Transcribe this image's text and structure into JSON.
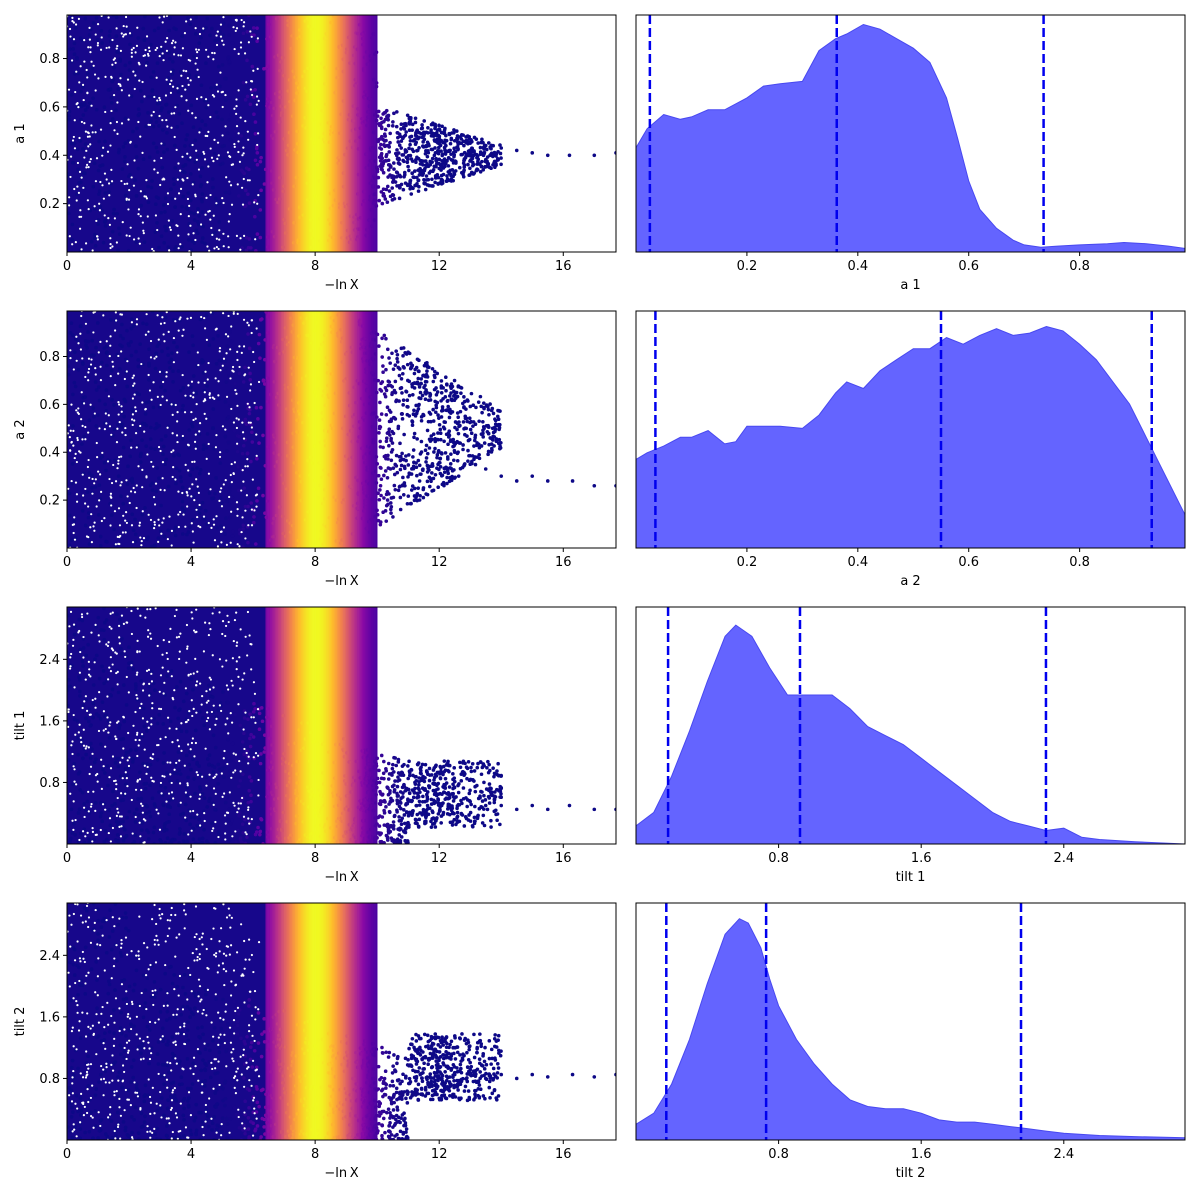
{
  "chart_data": [
    {
      "type": "scatter",
      "xlabel": "−ln X",
      "ylabel": "a 1",
      "xlim": [
        0,
        17.7
      ],
      "ylim": [
        0,
        0.98
      ],
      "xticks": [
        0,
        4,
        8,
        12,
        16
      ],
      "xtick_labels": [
        "0",
        "4",
        "8",
        "12",
        "16"
      ],
      "yticks": [
        0.2,
        0.4,
        0.6,
        0.8
      ],
      "ytick_labels": [
        "0.2",
        "0.4",
        "0.6",
        "0.8"
      ],
      "colormap": "plasma",
      "tail": [
        [
          11.5,
          0.48
        ],
        [
          12.0,
          0.47
        ],
        [
          12.5,
          0.46
        ],
        [
          13.0,
          0.45
        ],
        [
          13.5,
          0.44
        ],
        [
          14.0,
          0.43
        ],
        [
          14.5,
          0.42
        ],
        [
          15.0,
          0.41
        ],
        [
          15.5,
          0.4
        ],
        [
          16.2,
          0.4
        ],
        [
          17.0,
          0.4
        ],
        [
          17.7,
          0.41
        ]
      ]
    },
    {
      "type": "area",
      "xlabel": "a 1",
      "ylabel": "",
      "xlim": [
        0,
        0.99
      ],
      "xticks": [
        0.2,
        0.4,
        0.6,
        0.8
      ],
      "xtick_labels": [
        "0.2",
        "0.4",
        "0.6",
        "0.8"
      ],
      "x": [
        0,
        0.02,
        0.05,
        0.08,
        0.1,
        0.13,
        0.16,
        0.2,
        0.23,
        0.26,
        0.3,
        0.33,
        0.36,
        0.38,
        0.41,
        0.44,
        0.47,
        0.5,
        0.53,
        0.56,
        0.58,
        0.6,
        0.62,
        0.65,
        0.68,
        0.7,
        0.73,
        0.76,
        0.8,
        0.85,
        0.88,
        0.92,
        0.96,
        0.99
      ],
      "values": [
        0.44,
        0.52,
        0.58,
        0.56,
        0.57,
        0.6,
        0.6,
        0.65,
        0.7,
        0.71,
        0.72,
        0.85,
        0.9,
        0.92,
        0.96,
        0.94,
        0.9,
        0.86,
        0.8,
        0.65,
        0.48,
        0.3,
        0.18,
        0.1,
        0.05,
        0.03,
        0.02,
        0.025,
        0.03,
        0.035,
        0.04,
        0.035,
        0.025,
        0.015
      ],
      "ylim": [
        0,
        1
      ],
      "color": "#6464ff",
      "vlines": [
        0.025,
        0.362,
        0.735
      ],
      "vline_color": "#0000ee"
    },
    {
      "type": "scatter",
      "xlabel": "−ln X",
      "ylabel": "a 2",
      "xlim": [
        0,
        17.7
      ],
      "ylim": [
        0,
        0.99
      ],
      "xticks": [
        0,
        4,
        8,
        12,
        16
      ],
      "xtick_labels": [
        "0",
        "4",
        "8",
        "12",
        "16"
      ],
      "yticks": [
        0.2,
        0.4,
        0.6,
        0.8
      ],
      "ytick_labels": [
        "0.2",
        "0.4",
        "0.6",
        "0.8"
      ],
      "colormap": "plasma",
      "tail": [
        [
          12.5,
          0.4
        ],
        [
          13.0,
          0.35
        ],
        [
          13.5,
          0.33
        ],
        [
          14.0,
          0.3
        ],
        [
          14.5,
          0.28
        ],
        [
          15.0,
          0.3
        ],
        [
          15.5,
          0.28
        ],
        [
          16.3,
          0.28
        ],
        [
          17.0,
          0.26
        ],
        [
          17.7,
          0.26
        ]
      ]
    },
    {
      "type": "area",
      "xlabel": "a 2",
      "ylabel": "",
      "xlim": [
        0,
        0.99
      ],
      "xticks": [
        0.2,
        0.4,
        0.6,
        0.8
      ],
      "xtick_labels": [
        "0.2",
        "0.4",
        "0.6",
        "0.8"
      ],
      "x": [
        0,
        0.02,
        0.05,
        0.08,
        0.1,
        0.13,
        0.16,
        0.18,
        0.2,
        0.23,
        0.26,
        0.3,
        0.33,
        0.36,
        0.38,
        0.41,
        0.44,
        0.47,
        0.5,
        0.53,
        0.56,
        0.59,
        0.62,
        0.65,
        0.68,
        0.71,
        0.74,
        0.77,
        0.8,
        0.83,
        0.86,
        0.89,
        0.92,
        0.95,
        0.99
      ],
      "values": [
        0.4,
        0.43,
        0.46,
        0.5,
        0.5,
        0.53,
        0.47,
        0.48,
        0.55,
        0.55,
        0.55,
        0.54,
        0.6,
        0.7,
        0.75,
        0.72,
        0.8,
        0.85,
        0.9,
        0.9,
        0.95,
        0.92,
        0.96,
        0.99,
        0.96,
        0.97,
        1.0,
        0.98,
        0.92,
        0.85,
        0.75,
        0.65,
        0.5,
        0.35,
        0.15
      ],
      "ylim": [
        0,
        1.07
      ],
      "color": "#6464ff",
      "vlines": [
        0.035,
        0.55,
        0.93
      ],
      "vline_color": "#0000ee"
    },
    {
      "type": "scatter",
      "xlabel": "−ln X",
      "ylabel": "tilt 1",
      "xlim": [
        0,
        17.7
      ],
      "ylim": [
        0,
        3.08
      ],
      "xticks": [
        0,
        4,
        8,
        12,
        16
      ],
      "xtick_labels": [
        "0",
        "4",
        "8",
        "12",
        "16"
      ],
      "yticks": [
        0.8,
        1.6,
        2.4
      ],
      "ytick_labels": [
        "0.8",
        "1.6",
        "2.4"
      ],
      "colormap": "plasma",
      "tail": [
        [
          12.5,
          0.6
        ],
        [
          13.0,
          0.55
        ],
        [
          13.5,
          0.5
        ],
        [
          14.0,
          0.5
        ],
        [
          14.5,
          0.45
        ],
        [
          15.0,
          0.5
        ],
        [
          15.5,
          0.45
        ],
        [
          16.2,
          0.5
        ],
        [
          17.0,
          0.45
        ],
        [
          17.7,
          0.45
        ]
      ]
    },
    {
      "type": "area",
      "xlabel": "tilt 1",
      "ylabel": "",
      "xlim": [
        0,
        3.08
      ],
      "xticks": [
        0.8,
        1.6,
        2.4
      ],
      "xtick_labels": [
        "0.8",
        "1.6",
        "2.4"
      ],
      "x": [
        0,
        0.1,
        0.2,
        0.3,
        0.4,
        0.5,
        0.56,
        0.65,
        0.75,
        0.85,
        0.9,
        0.95,
        1.1,
        1.2,
        1.3,
        1.4,
        1.5,
        1.6,
        1.7,
        1.8,
        1.9,
        2.0,
        2.1,
        2.2,
        2.3,
        2.4,
        2.5,
        2.6,
        2.8,
        3.08
      ],
      "values": [
        0.08,
        0.14,
        0.3,
        0.5,
        0.72,
        0.92,
        0.97,
        0.92,
        0.78,
        0.66,
        0.66,
        0.66,
        0.66,
        0.6,
        0.52,
        0.48,
        0.44,
        0.38,
        0.32,
        0.26,
        0.2,
        0.14,
        0.1,
        0.08,
        0.06,
        0.07,
        0.03,
        0.02,
        0.01,
        0.0
      ],
      "ylim": [
        0,
        1.05
      ],
      "color": "#6464ff",
      "vlines": [
        0.18,
        0.92,
        2.3
      ],
      "vline_color": "#0000ee"
    },
    {
      "type": "scatter",
      "xlabel": "−ln X",
      "ylabel": "tilt 2",
      "xlim": [
        0,
        17.7
      ],
      "ylim": [
        0,
        3.08
      ],
      "xticks": [
        0,
        4,
        8,
        12,
        16
      ],
      "xtick_labels": [
        "0",
        "4",
        "8",
        "12",
        "16"
      ],
      "yticks": [
        0.8,
        1.6,
        2.4
      ],
      "ytick_labels": [
        "0.8",
        "1.6",
        "2.4"
      ],
      "colormap": "plasma",
      "tail": [
        [
          12.5,
          0.85
        ],
        [
          13.0,
          0.85
        ],
        [
          13.5,
          0.8
        ],
        [
          14.0,
          0.85
        ],
        [
          14.5,
          0.8
        ],
        [
          15.0,
          0.85
        ],
        [
          15.5,
          0.82
        ],
        [
          16.3,
          0.85
        ],
        [
          17.0,
          0.82
        ],
        [
          17.7,
          0.85
        ]
      ]
    },
    {
      "type": "area",
      "xlabel": "tilt 2",
      "ylabel": "",
      "xlim": [
        0,
        3.08
      ],
      "xticks": [
        0.8,
        1.6,
        2.4
      ],
      "xtick_labels": [
        "0.8",
        "1.6",
        "2.4"
      ],
      "x": [
        0,
        0.1,
        0.2,
        0.3,
        0.4,
        0.5,
        0.58,
        0.63,
        0.7,
        0.75,
        0.8,
        0.9,
        1.0,
        1.1,
        1.2,
        1.3,
        1.4,
        1.5,
        1.6,
        1.7,
        1.8,
        1.9,
        2.0,
        2.1,
        2.2,
        2.3,
        2.4,
        2.6,
        2.8,
        3.08
      ],
      "values": [
        0.07,
        0.12,
        0.25,
        0.45,
        0.7,
        0.92,
        0.99,
        0.97,
        0.86,
        0.72,
        0.6,
        0.45,
        0.34,
        0.25,
        0.18,
        0.15,
        0.14,
        0.14,
        0.12,
        0.09,
        0.08,
        0.08,
        0.07,
        0.06,
        0.05,
        0.04,
        0.03,
        0.02,
        0.015,
        0.01
      ],
      "ylim": [
        0,
        1.06
      ],
      "color": "#6464ff",
      "vlines": [
        0.17,
        0.73,
        2.16
      ],
      "vline_color": "#0000ee"
    }
  ]
}
